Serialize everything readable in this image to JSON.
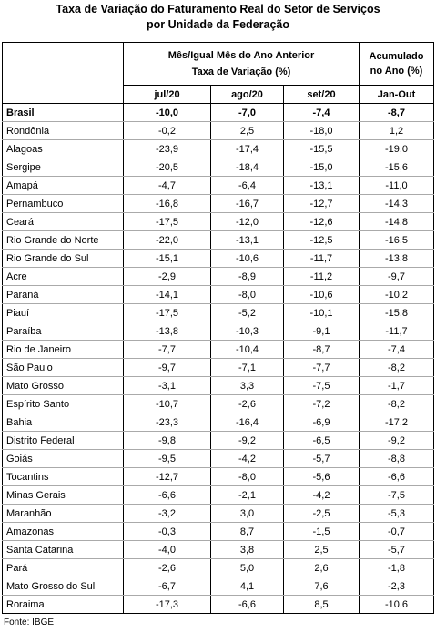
{
  "title": [
    "Taxa de Variação do Faturamento Real do Setor de Serviços",
    "por Unidade da Federação"
  ],
  "header": {
    "group": [
      "Mês/Igual Mês do Ano Anterior",
      "Taxa de Variação (%)"
    ],
    "accum": [
      "Acumulado",
      "no Ano (%)"
    ],
    "columns": [
      "jul/20",
      "ago/20",
      "set/20",
      "Jan-Out"
    ]
  },
  "table": {
    "rows": [
      [
        "Brasil",
        "-10,0",
        "-7,0",
        "-7,4",
        "-8,7"
      ],
      [
        "Rondônia",
        "-0,2",
        "2,5",
        "-18,0",
        "1,2"
      ],
      [
        "Alagoas",
        "-23,9",
        "-17,4",
        "-15,5",
        "-19,0"
      ],
      [
        "Sergipe",
        "-20,5",
        "-18,4",
        "-15,0",
        "-15,6"
      ],
      [
        "Amapá",
        "-4,7",
        "-6,4",
        "-13,1",
        "-11,0"
      ],
      [
        "Pernambuco",
        "-16,8",
        "-16,7",
        "-12,7",
        "-14,3"
      ],
      [
        "Ceará",
        "-17,5",
        "-12,0",
        "-12,6",
        "-14,8"
      ],
      [
        "Rio Grande do Norte",
        "-22,0",
        "-13,1",
        "-12,5",
        "-16,5"
      ],
      [
        "Rio Grande do Sul",
        "-15,1",
        "-10,6",
        "-11,7",
        "-13,8"
      ],
      [
        "Acre",
        "-2,9",
        "-8,9",
        "-11,2",
        "-9,7"
      ],
      [
        "Paraná",
        "-14,1",
        "-8,0",
        "-10,6",
        "-10,2"
      ],
      [
        "Piauí",
        "-17,5",
        "-5,2",
        "-10,1",
        "-15,8"
      ],
      [
        "Paraíba",
        "-13,8",
        "-10,3",
        "-9,1",
        "-11,7"
      ],
      [
        "Rio de Janeiro",
        "-7,7",
        "-10,4",
        "-8,7",
        "-7,4"
      ],
      [
        "São Paulo",
        "-9,7",
        "-7,1",
        "-7,7",
        "-8,2"
      ],
      [
        "Mato Grosso",
        "-3,1",
        "3,3",
        "-7,5",
        "-1,7"
      ],
      [
        "Espírito Santo",
        "-10,7",
        "-2,6",
        "-7,2",
        "-8,2"
      ],
      [
        "Bahia",
        "-23,3",
        "-16,4",
        "-6,9",
        "-17,2"
      ],
      [
        "Distrito Federal",
        "-9,8",
        "-9,2",
        "-6,5",
        "-9,2"
      ],
      [
        "Goiás",
        "-9,5",
        "-4,2",
        "-5,7",
        "-8,8"
      ],
      [
        "Tocantins",
        "-12,7",
        "-8,0",
        "-5,6",
        "-6,6"
      ],
      [
        "Minas Gerais",
        "-6,6",
        "-2,1",
        "-4,2",
        "-7,5"
      ],
      [
        "Maranhão",
        "-3,2",
        "3,0",
        "-2,5",
        "-5,3"
      ],
      [
        "Amazonas",
        "-0,3",
        "8,7",
        "-1,5",
        "-0,7"
      ],
      [
        "Santa Catarina",
        "-4,0",
        "3,8",
        "2,5",
        "-5,7"
      ],
      [
        "Pará",
        "-2,6",
        "5,0",
        "2,6",
        "-1,8"
      ],
      [
        "Mato Grosso do Sul",
        "-6,7",
        "4,1",
        "7,6",
        "-2,3"
      ],
      [
        "Roraima",
        "-17,3",
        "-6,6",
        "8,5",
        "-10,6"
      ]
    ]
  },
  "source": "Fonte: IBGE"
}
